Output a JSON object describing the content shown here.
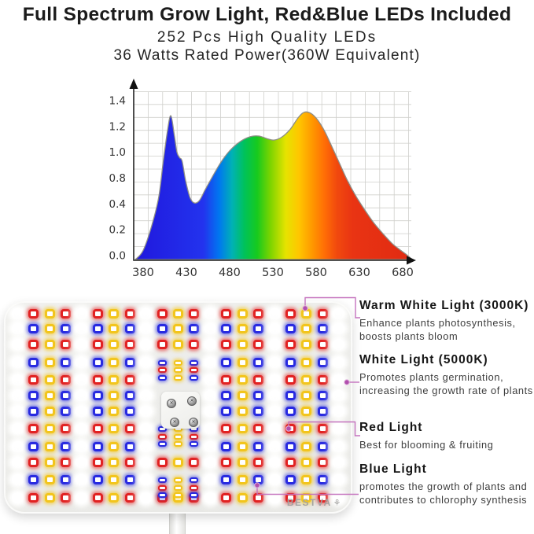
{
  "header": {
    "title": "Full Spectrum Grow Light, Red&Blue LEDs Included",
    "subtitle1": "252 Pcs High Quality LEDs",
    "subtitle2": "36 Watts Rated Power(360W Equivalent)"
  },
  "chart_data": {
    "type": "area",
    "title": "",
    "xlabel": "",
    "ylabel": "",
    "x_tick_labels": [
      "380",
      "430",
      "480",
      "530",
      "580",
      "630",
      "680"
    ],
    "y_tick_labels": [
      "1.4",
      "1.2",
      "1.0",
      "0.8",
      "0.4",
      "0.2",
      "0.0"
    ],
    "xlim": [
      371,
      692
    ],
    "ylim": [
      0,
      1.4
    ],
    "grid": true,
    "legend_position": "none",
    "curve": [
      [
        371,
        0
      ],
      [
        380,
        0.08
      ],
      [
        390,
        0.3
      ],
      [
        398,
        0.55
      ],
      [
        403,
        0.85
      ],
      [
        408,
        1.13
      ],
      [
        412,
        1.27
      ],
      [
        416,
        1.1
      ],
      [
        419,
        0.95
      ],
      [
        422,
        0.9
      ],
      [
        425,
        0.87
      ],
      [
        429,
        0.7
      ],
      [
        434,
        0.55
      ],
      [
        439,
        0.5
      ],
      [
        445,
        0.52
      ],
      [
        452,
        0.62
      ],
      [
        460,
        0.73
      ],
      [
        470,
        0.86
      ],
      [
        480,
        0.96
      ],
      [
        492,
        1.04
      ],
      [
        504,
        1.085
      ],
      [
        514,
        1.09
      ],
      [
        524,
        1.065
      ],
      [
        531,
        1.055
      ],
      [
        540,
        1.08
      ],
      [
        550,
        1.15
      ],
      [
        559,
        1.25
      ],
      [
        566,
        1.3
      ],
      [
        574,
        1.29
      ],
      [
        582,
        1.23
      ],
      [
        590,
        1.13
      ],
      [
        598,
        1.0
      ],
      [
        607,
        0.85
      ],
      [
        616,
        0.7
      ],
      [
        626,
        0.56
      ],
      [
        636,
        0.44
      ],
      [
        646,
        0.33
      ],
      [
        657,
        0.23
      ],
      [
        668,
        0.14
      ],
      [
        678,
        0.08
      ],
      [
        685,
        0.04
      ],
      [
        691,
        0
      ]
    ],
    "gradient_stops": [
      [
        371,
        "#2018dd"
      ],
      [
        450,
        "#2333ee"
      ],
      [
        468,
        "#0077f0"
      ],
      [
        483,
        "#00b2b4"
      ],
      [
        497,
        "#00c25a"
      ],
      [
        512,
        "#17ca1e"
      ],
      [
        527,
        "#7bd400"
      ],
      [
        545,
        "#e6e300"
      ],
      [
        560,
        "#ffc600"
      ],
      [
        576,
        "#ff9600"
      ],
      [
        590,
        "#ff6d06"
      ],
      [
        604,
        "#f1490e"
      ],
      [
        622,
        "#e93413"
      ],
      [
        692,
        "#e02a12"
      ]
    ]
  },
  "panel": {
    "logo": "BESTVA",
    "logo_icon": "⚘",
    "colors": {
      "R": "#e12222",
      "B": "#282ae0",
      "Y": "#f2c51d"
    },
    "glows": {
      "R": "rgba(227,32,32,0.62)",
      "B": "rgba(45,48,226,0.62)",
      "Y": "rgba(244,198,26,0.68)"
    },
    "stack_pattern": {
      "b": [
        "B",
        "R",
        "B"
      ],
      "y": [
        "Y",
        "Y",
        "Y"
      ]
    },
    "grid": [
      "WRYRWRYRWRYRWRYRWRYRW",
      "WBYBWBYBWBYBWBYBWBYBW",
      "WRYRWRYRWRYRWRYRWRYRW",
      "WBYBWBYBWbybWBYBWBYBW",
      "WRYRWRYRW...WRYRWRYRW",
      "WBYBWBYBW...WBYBWBYBW",
      "WBYBWBYBW...WBYBWBYBW",
      "WRYRWRYRWbybWRYRWRYRW",
      "WBYBWBYBW...WBYBWBYBW",
      "WRYRWRYRWRYRWRYRWRYRW",
      "WBYBWBYBWbybWBYBWBYBW",
      "WRYRWRYRWRYRWRYRWRYRW"
    ]
  },
  "callouts": {
    "line_color": "#c472be",
    "dot_color": "#b14fae"
  },
  "legend": [
    {
      "title": "Warm White Light (3000K)",
      "desc": "Enhance plants photosynthesis, boosts plants bloom"
    },
    {
      "title": "White Light (5000K)",
      "desc": "Promotes plants germination, increasing the growth rate of plants"
    },
    {
      "title": "Red Light",
      "desc": "Best for blooming & fruiting"
    },
    {
      "title": "Blue Light",
      "desc": "promotes the growth of plants and contributes to chlorophy synthesis"
    }
  ]
}
